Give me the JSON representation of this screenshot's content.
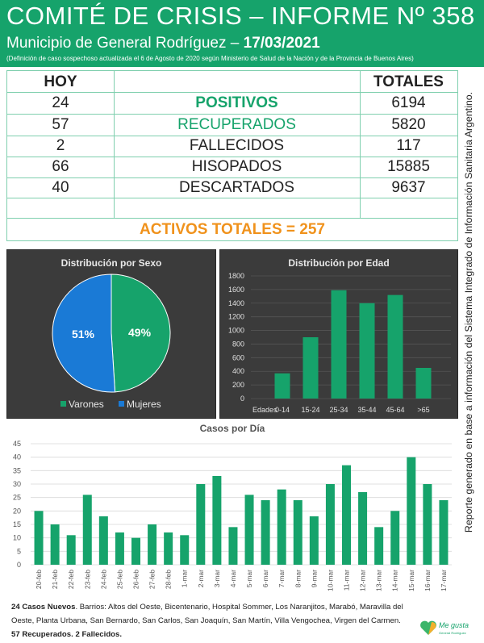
{
  "header": {
    "title": "COMITÉ DE CRISIS – INFORME Nº 358",
    "subtitle": "Municipio de General Rodríguez –",
    "date": "17/03/2021",
    "note": "(Definición de caso sospechoso actualizada el 6 de Agosto de 2020 según Ministerio de Salud de la Nación y de la Provincia de Buenos Aires)"
  },
  "table": {
    "col_hoy": "HOY",
    "col_totales": "TOTALES",
    "rows": [
      {
        "hoy": "24",
        "label": "POSITIVOS",
        "total": "6194",
        "color": "#16a36b"
      },
      {
        "hoy": "57",
        "label": "RECUPERADOS",
        "total": "5820",
        "color": "#16a36b"
      },
      {
        "hoy": "2",
        "label": "FALLECIDOS",
        "total": "117",
        "color": "#222222"
      },
      {
        "hoy": "66",
        "label": "HISOPADOS",
        "total": "15885",
        "color": "#222222"
      },
      {
        "hoy": "40",
        "label": "DESCARTADOS",
        "total": "9637",
        "color": "#222222"
      }
    ],
    "activos": "ACTIVOS TOTALES = 257"
  },
  "side_text": "Reporte generado en base a información del Sistema Integrado de Información Sanitaria Argentino.",
  "chart_data": [
    {
      "type": "pie",
      "title": "Distribución por Sexo",
      "categories": [
        "Varones",
        "Mujeres"
      ],
      "values": [
        49,
        51
      ],
      "labels": [
        "49%",
        "51%"
      ],
      "colors": [
        "#16a36b",
        "#1a7ad6"
      ],
      "legend": "bottom"
    },
    {
      "type": "bar",
      "title": "Distribución por Edad",
      "xlabel": "Edades",
      "categories": [
        "0-14",
        "15-24",
        "25-34",
        "35-44",
        "45-64",
        ">65"
      ],
      "values": [
        370,
        900,
        1590,
        1400,
        1520,
        450
      ],
      "ylim": [
        0,
        1800
      ],
      "yticks": [
        "0",
        "200",
        "400",
        "600",
        "800",
        "1000",
        "1200",
        "1400",
        "1600",
        "1800"
      ],
      "color": "#16a36b",
      "grid": true
    },
    {
      "type": "bar",
      "title": "Casos por Día",
      "categories": [
        "20-feb",
        "21-feb",
        "22-feb",
        "23-feb",
        "24-feb",
        "25-feb",
        "26-feb",
        "27-feb",
        "28-feb",
        "1-mar",
        "2-mar",
        "3-mar",
        "4-mar",
        "5-mar",
        "6-mar",
        "7-mar",
        "8-mar",
        "9-mar",
        "10-mar",
        "11-mar",
        "12-mar",
        "13-mar",
        "14-mar",
        "15-mar",
        "16-mar",
        "17-mar"
      ],
      "values": [
        20,
        15,
        11,
        26,
        18,
        12,
        10,
        15,
        12,
        11,
        30,
        33,
        14,
        26,
        24,
        28,
        24,
        18,
        30,
        37,
        27,
        14,
        20,
        40,
        30,
        24
      ],
      "ylim": [
        0,
        45
      ],
      "yticks": [
        "0",
        "5",
        "10",
        "15",
        "20",
        "25",
        "30",
        "35",
        "40",
        "45"
      ],
      "color": "#16a36b",
      "grid": true
    }
  ],
  "footer": {
    "nuevos_bold": "24 Casos Nuevos",
    "barrios": ". Barrios: Altos del Oeste, Bicentenario, Hospital Sommer, Los Naranjitos, Marabó, Maravilla del Oeste, Planta Urbana, San Bernardo, San Carlos, San Joaquín, San Martín, Villa Vengochea, Virgen del Carmen.",
    "recuperados": "57 Recuperados. 2 Fallecidos."
  },
  "logo": {
    "text": "Me gusta",
    "subtext": "General Rodríguez"
  }
}
